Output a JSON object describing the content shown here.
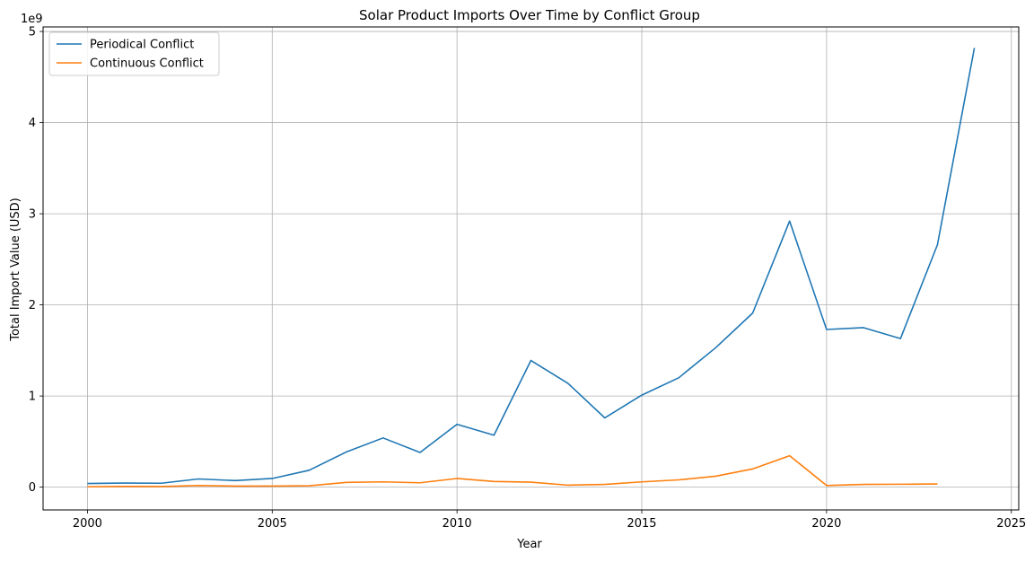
{
  "chart_data": {
    "type": "line",
    "title": "Solar Product Imports Over Time by Conflict Group",
    "xlabel": "Year",
    "ylabel": "Total Import Value (USD)",
    "y_offset_label": "1e9",
    "xlim": [
      1998.8,
      2025.2
    ],
    "ylim": [
      -0.25,
      5.05
    ],
    "x_ticks": [
      2000,
      2005,
      2010,
      2015,
      2020,
      2025
    ],
    "y_ticks": [
      0,
      1,
      2,
      3,
      4,
      5
    ],
    "grid": true,
    "legend_position": "top-left",
    "series": [
      {
        "name": "Periodical Conflict",
        "color": "#1f77b4",
        "x": [
          2000,
          2001,
          2002,
          2003,
          2004,
          2005,
          2006,
          2007,
          2008,
          2009,
          2010,
          2011,
          2012,
          2013,
          2014,
          2015,
          2016,
          2017,
          2018,
          2019,
          2020,
          2021,
          2022,
          2023,
          2024
        ],
        "y": [
          0.04,
          0.045,
          0.043,
          0.09,
          0.072,
          0.095,
          0.185,
          0.385,
          0.54,
          0.38,
          0.69,
          0.57,
          1.39,
          1.14,
          0.76,
          1.01,
          1.2,
          1.53,
          1.91,
          2.92,
          1.73,
          1.75,
          1.63,
          2.66,
          4.82
        ]
      },
      {
        "name": "Continuous Conflict",
        "color": "#ff7f0e",
        "x": [
          2000,
          2001,
          2002,
          2003,
          2004,
          2005,
          2006,
          2007,
          2008,
          2009,
          2010,
          2011,
          2012,
          2013,
          2014,
          2015,
          2016,
          2017,
          2018,
          2019,
          2020,
          2021,
          2022,
          2023
        ],
        "y": [
          0.005,
          0.008,
          0.007,
          0.018,
          0.012,
          0.012,
          0.015,
          0.052,
          0.058,
          0.048,
          0.095,
          0.062,
          0.055,
          0.022,
          0.03,
          0.058,
          0.08,
          0.12,
          0.2,
          0.345,
          0.018,
          0.03,
          0.032,
          0.035
        ]
      }
    ]
  }
}
